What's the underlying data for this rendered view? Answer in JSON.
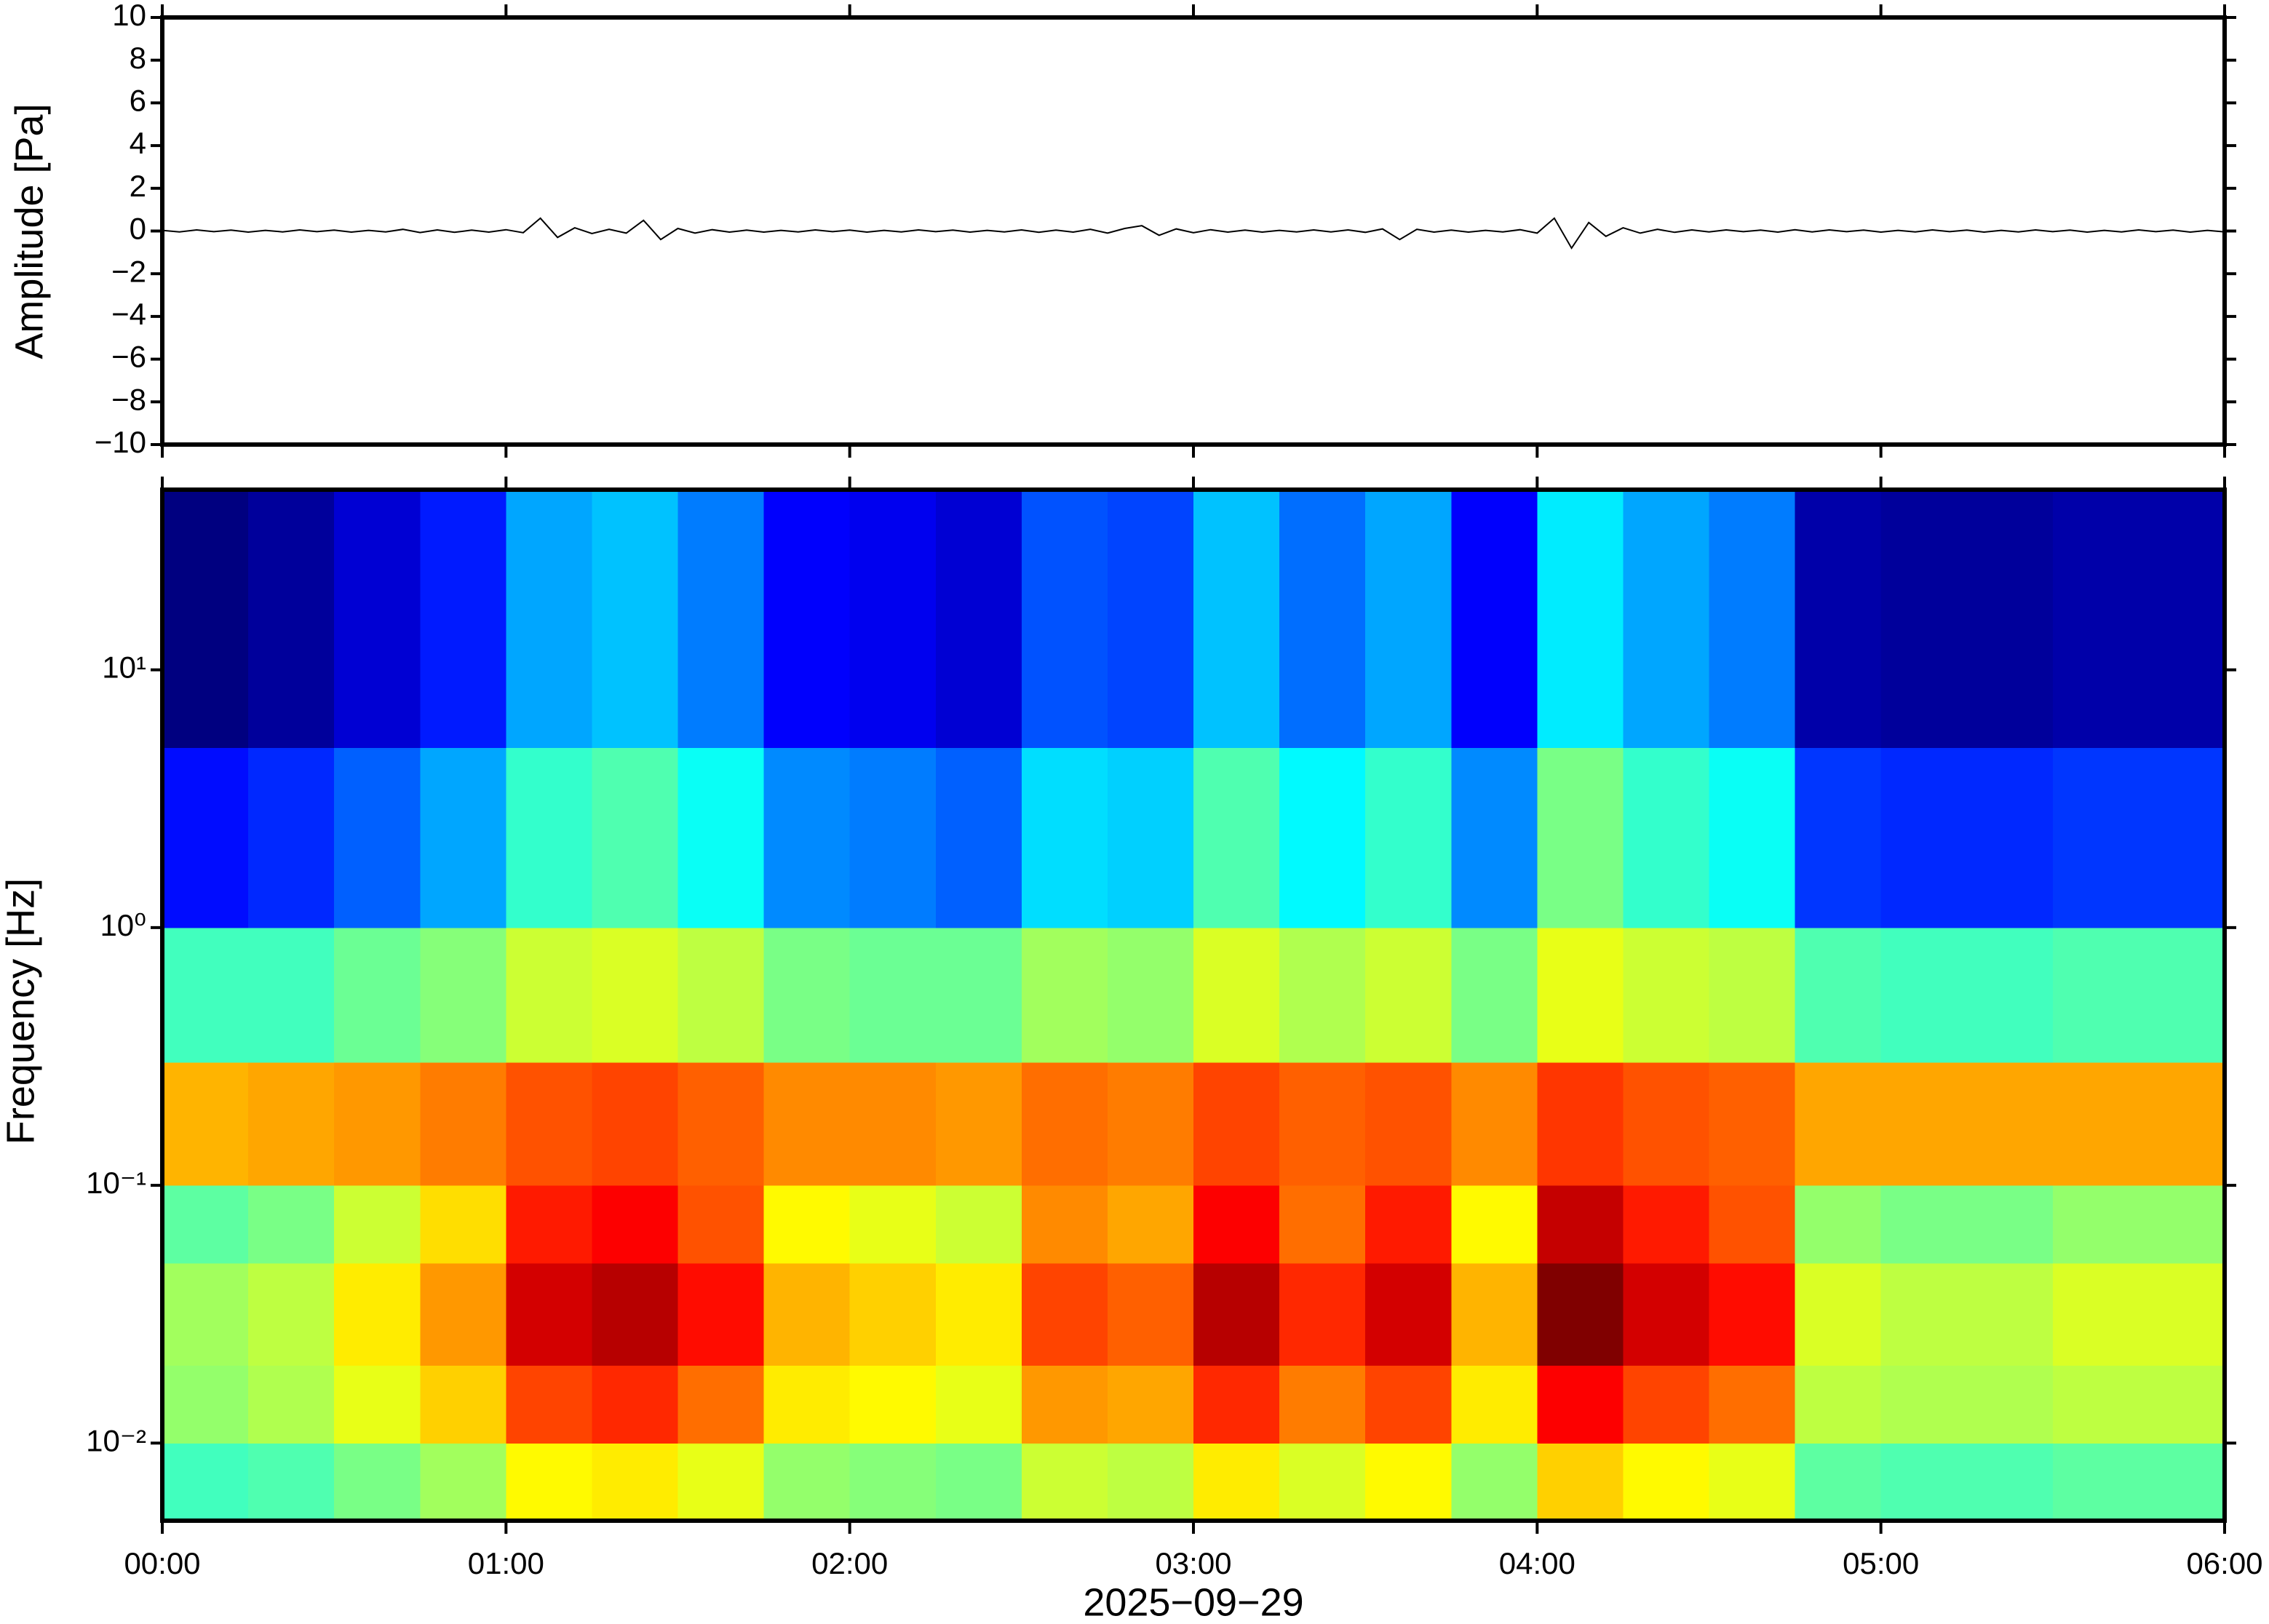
{
  "chart_data": [
    {
      "type": "line",
      "ylabel": "Amplitude [Pa]",
      "color": "#000000",
      "xlim": [
        0,
        360
      ],
      "ylim": [
        -10,
        10
      ],
      "yticks": [
        {
          "value": -10,
          "label": "−10"
        },
        {
          "value": -8,
          "label": "−8"
        },
        {
          "value": -6,
          "label": "−6"
        },
        {
          "value": -4,
          "label": "−4"
        },
        {
          "value": -2,
          "label": "−2"
        },
        0,
        2,
        4,
        6,
        8,
        10
      ],
      "x": [
        0,
        3,
        6,
        9,
        12,
        15,
        18,
        21,
        24,
        27,
        30,
        33,
        36,
        39,
        42,
        45,
        48,
        51,
        54,
        57,
        60,
        63,
        66,
        69,
        72,
        75,
        78,
        81,
        84,
        87,
        90,
        93,
        96,
        99,
        102,
        105,
        108,
        111,
        114,
        117,
        120,
        123,
        126,
        129,
        132,
        135,
        138,
        141,
        144,
        147,
        150,
        153,
        156,
        159,
        162,
        165,
        168,
        171,
        174,
        177,
        180,
        183,
        186,
        189,
        192,
        195,
        198,
        201,
        204,
        207,
        210,
        213,
        216,
        219,
        222,
        225,
        228,
        231,
        234,
        237,
        240,
        243,
        246,
        249,
        252,
        255,
        258,
        261,
        264,
        267,
        270,
        273,
        276,
        279,
        282,
        285,
        288,
        291,
        294,
        297,
        300,
        303,
        306,
        309,
        312,
        315,
        318,
        321,
        324,
        327,
        330,
        333,
        336,
        339,
        342,
        345,
        348,
        351,
        354,
        357,
        360
      ],
      "values": [
        0.03,
        -0.04,
        0.05,
        -0.03,
        0.04,
        -0.05,
        0.03,
        -0.04,
        0.05,
        -0.03,
        0.04,
        -0.05,
        0.03,
        -0.04,
        0.08,
        -0.07,
        0.05,
        -0.06,
        0.04,
        -0.05,
        0.06,
        -0.08,
        0.6,
        -0.3,
        0.15,
        -0.12,
        0.08,
        -0.1,
        0.5,
        -0.4,
        0.12,
        -0.1,
        0.06,
        -0.05,
        0.04,
        -0.05,
        0.03,
        -0.04,
        0.05,
        -0.03,
        0.04,
        -0.05,
        0.03,
        -0.04,
        0.05,
        -0.03,
        0.04,
        -0.05,
        0.03,
        -0.04,
        0.05,
        -0.06,
        0.04,
        -0.05,
        0.08,
        -0.1,
        0.12,
        0.25,
        -0.2,
        0.1,
        -0.08,
        0.06,
        -0.05,
        0.04,
        -0.05,
        0.03,
        -0.04,
        0.05,
        -0.04,
        0.05,
        -0.06,
        0.1,
        -0.4,
        0.08,
        -0.05,
        0.04,
        -0.05,
        0.03,
        -0.04,
        0.06,
        -0.1,
        0.6,
        -0.8,
        0.4,
        -0.25,
        0.15,
        -0.1,
        0.08,
        -0.06,
        0.05,
        -0.04,
        0.05,
        -0.03,
        0.04,
        -0.05,
        0.06,
        -0.04,
        0.05,
        -0.03,
        0.04,
        -0.05,
        0.03,
        -0.04,
        0.05,
        -0.03,
        0.04,
        -0.05,
        0.03,
        -0.04,
        0.05,
        -0.03,
        0.04,
        -0.05,
        0.03,
        -0.04,
        0.05,
        -0.03,
        0.04,
        -0.05,
        0.03,
        -0.04
      ]
    },
    {
      "type": "heatmap",
      "ylabel": "Frequency [Hz]",
      "xlabel": "2025−09−29",
      "colormap": "jet",
      "log_y": true,
      "xlim": [
        0,
        360
      ],
      "xticks": [
        {
          "value": 0,
          "label": "00:00"
        },
        {
          "value": 60,
          "label": "01:00"
        },
        {
          "value": 120,
          "label": "02:00"
        },
        {
          "value": 180,
          "label": "03:00"
        },
        {
          "value": 240,
          "label": "04:00"
        },
        {
          "value": 300,
          "label": "05:00"
        },
        {
          "value": 360,
          "label": "06:00"
        }
      ],
      "ylim": [
        0.005,
        50
      ],
      "yticks": [
        {
          "value": 0.01,
          "label": "10⁻²"
        },
        {
          "value": 0.1,
          "label": "10⁻¹"
        },
        {
          "value": 1,
          "label": "10⁰"
        },
        {
          "value": 10,
          "label": "10¹"
        }
      ],
      "x_edges": [
        0,
        15,
        30,
        45,
        60,
        75,
        90,
        105,
        120,
        135,
        150,
        165,
        180,
        195,
        210,
        225,
        240,
        255,
        270,
        285,
        300,
        315,
        330,
        345,
        360
      ],
      "y_edges": [
        0.005,
        0.01,
        0.02,
        0.05,
        0.1,
        0.3,
        1,
        5,
        50
      ],
      "z": [
        [
          0.37,
          0.38,
          0.41,
          0.44,
          0.51,
          0.52,
          0.49,
          0.43,
          0.42,
          0.41,
          0.47,
          0.46,
          0.52,
          0.48,
          0.51,
          0.43,
          0.54,
          0.51,
          0.49,
          0.39,
          0.38,
          0.38,
          0.39,
          0.39
        ],
        [
          0.43,
          0.45,
          0.49,
          0.54,
          0.64,
          0.66,
          0.61,
          0.52,
          0.51,
          0.49,
          0.58,
          0.57,
          0.66,
          0.6,
          0.64,
          0.52,
          0.69,
          0.64,
          0.61,
          0.46,
          0.45,
          0.45,
          0.46,
          0.46
        ],
        [
          0.44,
          0.46,
          0.52,
          0.58,
          0.72,
          0.74,
          0.68,
          0.56,
          0.54,
          0.52,
          0.64,
          0.62,
          0.74,
          0.66,
          0.72,
          0.56,
          0.78,
          0.72,
          0.68,
          0.48,
          0.46,
          0.46,
          0.48,
          0.48
        ],
        [
          0.39,
          0.41,
          0.47,
          0.53,
          0.67,
          0.69,
          0.63,
          0.51,
          0.49,
          0.47,
          0.59,
          0.57,
          0.69,
          0.61,
          0.67,
          0.51,
          0.73,
          0.67,
          0.63,
          0.43,
          0.41,
          0.41,
          0.43,
          0.43
        ],
        [
          0.56,
          0.57,
          0.58,
          0.6,
          0.63,
          0.64,
          0.62,
          0.59,
          0.59,
          0.58,
          0.61,
          0.6,
          0.64,
          0.62,
          0.63,
          0.59,
          0.65,
          0.63,
          0.62,
          0.57,
          0.57,
          0.57,
          0.57,
          0.57
        ],
        [
          0.37,
          0.37,
          0.4,
          0.42,
          0.47,
          0.48,
          0.46,
          0.41,
          0.4,
          0.4,
          0.44,
          0.43,
          0.48,
          0.45,
          0.47,
          0.41,
          0.49,
          0.47,
          0.46,
          0.38,
          0.37,
          0.37,
          0.38,
          0.38
        ],
        [
          0.15,
          0.17,
          0.21,
          0.26,
          0.36,
          0.38,
          0.33,
          0.24,
          0.23,
          0.21,
          0.3,
          0.29,
          0.38,
          0.32,
          0.36,
          0.24,
          0.41,
          0.36,
          0.33,
          0.18,
          0.17,
          0.17,
          0.18,
          0.18
        ],
        [
          0.05,
          0.07,
          0.11,
          0.16,
          0.26,
          0.28,
          0.23,
          0.14,
          0.13,
          0.11,
          0.2,
          0.19,
          0.28,
          0.22,
          0.26,
          0.14,
          0.31,
          0.26,
          0.23,
          0.08,
          0.07,
          0.07,
          0.08,
          0.08
        ]
      ]
    }
  ]
}
